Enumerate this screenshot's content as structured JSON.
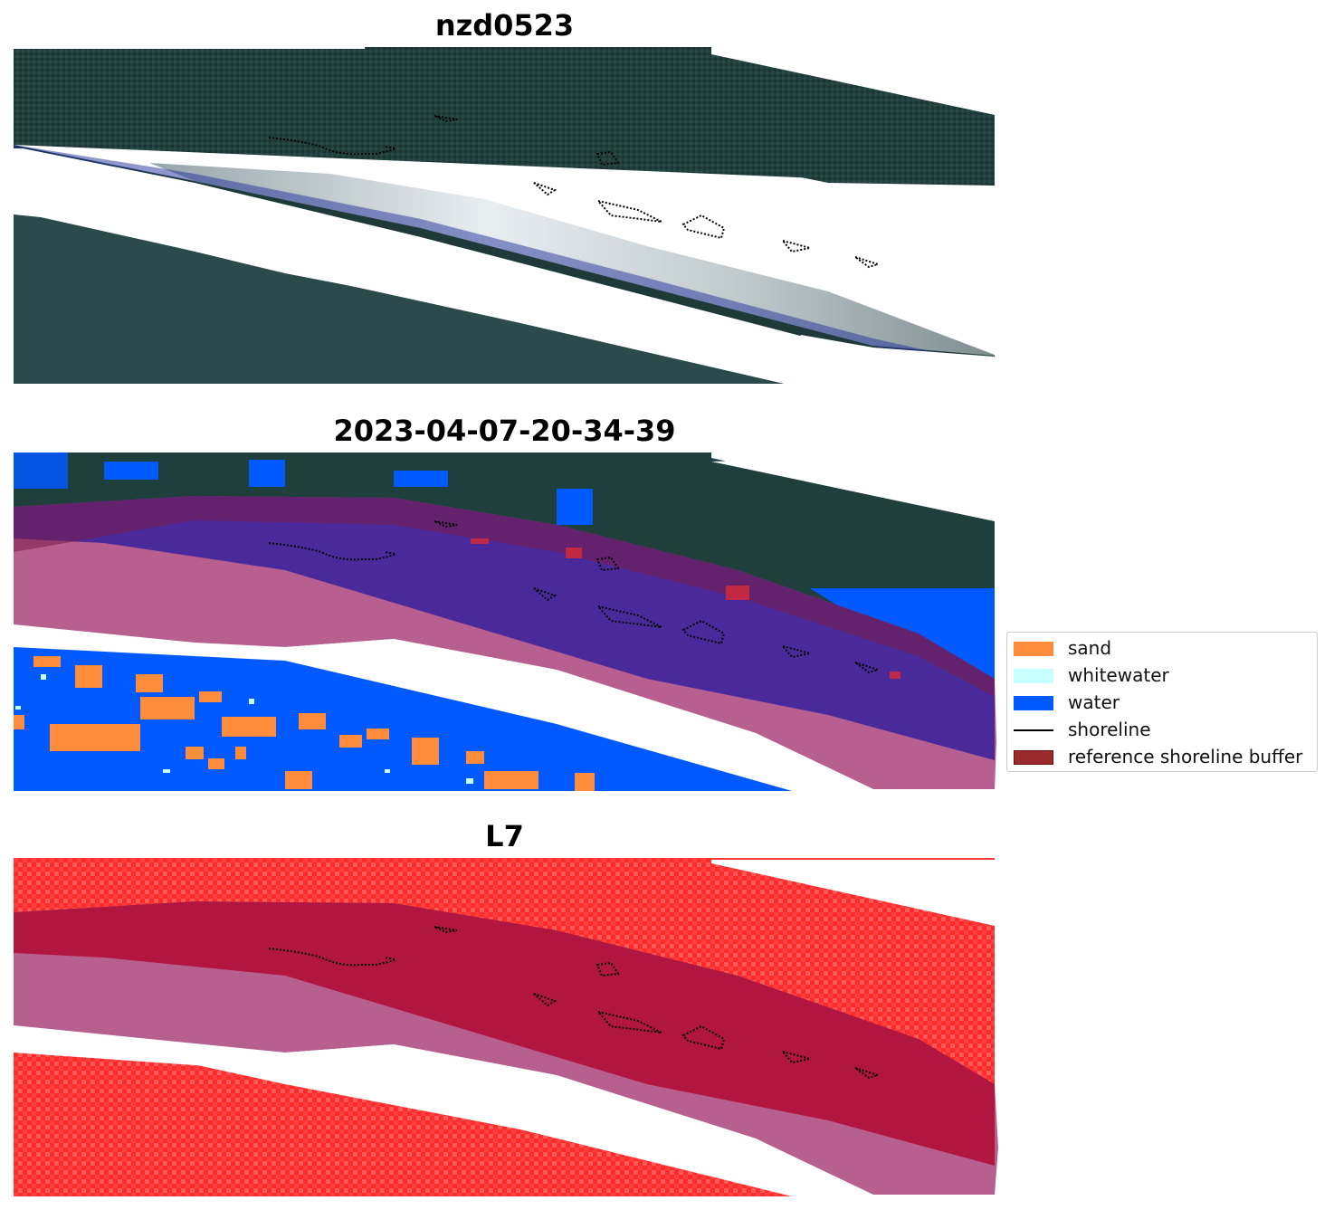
{
  "panels": [
    {
      "title": "nzd0523",
      "view": "rgb"
    },
    {
      "title": "2023-04-07-20-34-39",
      "view": "classification"
    },
    {
      "title": "L7",
      "view": "index"
    }
  ],
  "legend": {
    "items": [
      {
        "label": "sand",
        "color": "#ff8c3a",
        "kind": "patch"
      },
      {
        "label": "whitewater",
        "color": "#c8ffff",
        "kind": "patch"
      },
      {
        "label": "water",
        "color": "#005aff",
        "kind": "patch"
      },
      {
        "label": "shoreline",
        "color": "#000000",
        "kind": "line"
      },
      {
        "label": "reference shoreline buffer",
        "color": "#9b2a2a",
        "kind": "patch"
      }
    ]
  },
  "colors": {
    "forest": "#1f3f3c",
    "forest_dark": "#173130",
    "beach_white": "#c9d2d6",
    "water_blue": "#005aff",
    "sand_orange": "#ff8c3a",
    "buffer_red": "#8b1a3a",
    "buffer_mauve": "#b75f8e",
    "purple_class": "#4a2a9a",
    "index_red": "#ff2a2a",
    "index_dark": "#b0163f"
  }
}
